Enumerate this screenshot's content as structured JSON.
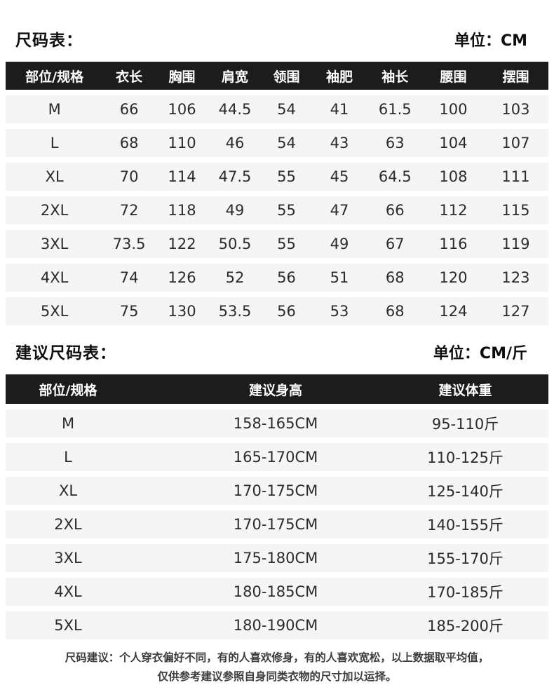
{
  "colors": {
    "header_bg": "#1c1c1c",
    "header_text": "#ffffff",
    "row_bg": "#f6f5f6",
    "body_text": "#2b2b2b",
    "page_bg": "#ffffff"
  },
  "footer": {
    "line1": "尺码建议：个人穿衣偏好不同，有的人喜欢修身，有的人喜欢宽松，以上数据取平均值，",
    "line2": "仅供参考建议参照自身同类衣物的尺寸加以运择。"
  },
  "chart_data": [
    {
      "type": "table",
      "title": "尺码表：",
      "unit_label": "单位：CM",
      "columns": [
        "部位/规格",
        "衣长",
        "胸围",
        "肩宽",
        "领围",
        "袖肥",
        "袖长",
        "腰围",
        "摆围"
      ],
      "rows": [
        [
          "M",
          "66",
          "106",
          "44.5",
          "54",
          "41",
          "61.5",
          "100",
          "103"
        ],
        [
          "L",
          "68",
          "110",
          "46",
          "54",
          "43",
          "63",
          "104",
          "107"
        ],
        [
          "XL",
          "70",
          "114",
          "47.5",
          "55",
          "45",
          "64.5",
          "108",
          "111"
        ],
        [
          "2XL",
          "72",
          "118",
          "49",
          "55",
          "47",
          "66",
          "112",
          "115"
        ],
        [
          "3XL",
          "73.5",
          "122",
          "50.5",
          "55",
          "49",
          "67",
          "116",
          "119"
        ],
        [
          "4XL",
          "74",
          "126",
          "52",
          "56",
          "51",
          "68",
          "120",
          "123"
        ],
        [
          "5XL",
          "75",
          "130",
          "53.5",
          "56",
          "53",
          "68",
          "124",
          "127"
        ]
      ]
    },
    {
      "type": "table",
      "title": "建议尺码表：",
      "unit_label": "单位：CM/斤",
      "columns": [
        "部位/规格",
        "建议身高",
        "建议体重"
      ],
      "rows": [
        [
          "M",
          "158-165CM",
          "95-110斤"
        ],
        [
          "L",
          "165-170CM",
          "110-125斤"
        ],
        [
          "XL",
          "170-175CM",
          "125-140斤"
        ],
        [
          "2XL",
          "170-175CM",
          "140-155斤"
        ],
        [
          "3XL",
          "175-180CM",
          "155-170斤"
        ],
        [
          "4XL",
          "180-185CM",
          "170-185斤"
        ],
        [
          "5XL",
          "180-190CM",
          "185-200斤"
        ]
      ]
    }
  ]
}
